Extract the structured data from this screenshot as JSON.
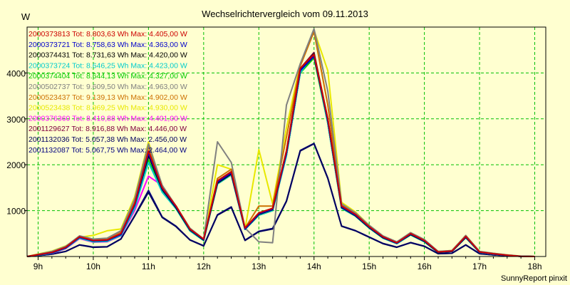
{
  "chart_data": {
    "type": "line",
    "title": "Wechselrichtervergleich vom 09.11.2013",
    "ylabel": "W",
    "footer": "SunnyReport pinxit",
    "ylim": [
      0,
      5000
    ],
    "xlim": [
      8.8,
      18.2
    ],
    "xticks": [
      9,
      10,
      11,
      12,
      13,
      14,
      15,
      16,
      17,
      18
    ],
    "xtick_labels": [
      "9h",
      "10h",
      "11h",
      "12h",
      "13h",
      "14h",
      "15h",
      "16h",
      "17h",
      "18h"
    ],
    "yticks": [
      1000,
      2000,
      3000,
      4000
    ],
    "ytick_labels": [
      "1000",
      "2000",
      "3000",
      "4000"
    ],
    "grid": true,
    "legend_position": "top-left",
    "x": [
      8.75,
      9.0,
      9.25,
      9.5,
      9.75,
      10.0,
      10.25,
      10.5,
      10.75,
      11.0,
      11.25,
      11.5,
      11.75,
      12.0,
      12.25,
      12.5,
      12.75,
      13.0,
      13.25,
      13.5,
      13.75,
      14.0,
      14.25,
      14.5,
      14.75,
      15.0,
      15.25,
      15.5,
      15.75,
      16.0,
      16.25,
      16.5,
      16.75,
      17.0,
      17.25,
      17.5,
      17.75,
      18.0
    ],
    "series": [
      {
        "name": "2000373813 Tot: 8.803,63 Wh Max: 4.405,00 W",
        "color": "#CC0000",
        "values": [
          0,
          40,
          90,
          200,
          430,
          350,
          360,
          500,
          1150,
          2300,
          1500,
          1100,
          600,
          380,
          1650,
          1850,
          620,
          950,
          1050,
          2300,
          4100,
          4405,
          3000,
          1100,
          920,
          650,
          430,
          300,
          500,
          350,
          100,
          120,
          440,
          100,
          60,
          30,
          5,
          0
        ]
      },
      {
        "name": "2000373721 Tot: 8.758,63 Wh Max: 4.363,00 W",
        "color": "#0000CC",
        "values": [
          0,
          35,
          80,
          190,
          420,
          340,
          350,
          480,
          1120,
          2250,
          1480,
          1080,
          590,
          370,
          1620,
          1820,
          600,
          930,
          1030,
          2250,
          4050,
          4363,
          2960,
          1080,
          900,
          640,
          420,
          290,
          490,
          340,
          95,
          115,
          430,
          95,
          55,
          25,
          5,
          0
        ]
      },
      {
        "name": "2000374431 Tot: 8.731,63 Wh Max: 4.420,00 W",
        "color": "#000000",
        "values": [
          0,
          35,
          80,
          190,
          420,
          340,
          350,
          480,
          1120,
          2200,
          1460,
          1060,
          580,
          360,
          1600,
          1800,
          600,
          920,
          1020,
          2250,
          4050,
          4420,
          2950,
          1070,
          890,
          630,
          410,
          290,
          480,
          330,
          90,
          110,
          420,
          95,
          55,
          25,
          5,
          0
        ]
      },
      {
        "name": "2000373724 Tot: 8.646,25 Wh Max: 4.423,00 W",
        "color": "#00CCCC",
        "values": [
          0,
          30,
          75,
          180,
          400,
          320,
          330,
          460,
          1050,
          2050,
          1400,
          1040,
          560,
          350,
          1580,
          1780,
          590,
          900,
          1000,
          2200,
          4000,
          4423,
          2900,
          1050,
          880,
          620,
          400,
          280,
          470,
          320,
          90,
          110,
          410,
          90,
          50,
          25,
          5,
          0
        ]
      },
      {
        "name": "2000374404 Tot: 8.644,13 Wh Max: 4.327,00 W",
        "color": "#00CC00",
        "values": [
          0,
          30,
          75,
          180,
          400,
          320,
          330,
          460,
          1050,
          2100,
          1420,
          1040,
          560,
          350,
          1580,
          1780,
          590,
          900,
          1000,
          2200,
          4000,
          4327,
          2900,
          1050,
          880,
          620,
          400,
          280,
          470,
          320,
          90,
          110,
          410,
          90,
          50,
          25,
          5,
          0
        ]
      },
      {
        "name": "2000502737 Tot: 9.609,50 Wh Max: 4.963,00 W",
        "color": "#808080",
        "values": [
          0,
          50,
          110,
          220,
          450,
          380,
          400,
          560,
          1250,
          2450,
          1550,
          1100,
          620,
          380,
          2500,
          2050,
          620,
          320,
          300,
          3300,
          4200,
          4963,
          3600,
          1150,
          950,
          680,
          450,
          320,
          520,
          370,
          110,
          130,
          460,
          110,
          70,
          35,
          8,
          0
        ]
      },
      {
        "name": "2000523437 Tot: 9.139,13 Wh Max: 4.902,00 W",
        "color": "#CC7000",
        "values": [
          0,
          45,
          100,
          210,
          440,
          370,
          390,
          540,
          1200,
          2400,
          1520,
          1090,
          610,
          370,
          1700,
          1900,
          620,
          1100,
          1100,
          2600,
          4150,
          4902,
          3300,
          1120,
          930,
          660,
          440,
          310,
          510,
          360,
          105,
          125,
          450,
          105,
          65,
          30,
          6,
          0
        ]
      },
      {
        "name": "2000523438 Tot: 8.969,25 Wh Max: 4.930,00 W",
        "color": "#E8E800",
        "values": [
          0,
          55,
          120,
          230,
          420,
          460,
          560,
          600,
          1300,
          2500,
          1500,
          1080,
          600,
          370,
          2000,
          1900,
          600,
          2330,
          1150,
          2800,
          4200,
          4930,
          4050,
          1180,
          970,
          680,
          440,
          310,
          520,
          360,
          110,
          130,
          460,
          110,
          70,
          35,
          8,
          0
        ]
      },
      {
        "name": "2000376360 Tot: 8.410,88 Wh Max: 4.401,00 W",
        "color": "#FF00FF",
        "values": [
          0,
          30,
          70,
          170,
          390,
          310,
          320,
          450,
          1000,
          1750,
          1550,
          1050,
          560,
          350,
          1580,
          1780,
          590,
          900,
          1000,
          2200,
          4000,
          4401,
          2900,
          1050,
          880,
          620,
          400,
          280,
          470,
          320,
          90,
          110,
          410,
          90,
          50,
          25,
          5,
          0
        ]
      },
      {
        "name": "2001129627 Tot: 8.916,88 Wh Max: 4.446,00 W",
        "color": "#800040",
        "values": [
          0,
          40,
          90,
          200,
          430,
          350,
          360,
          500,
          1150,
          2250,
          1500,
          1100,
          600,
          380,
          1650,
          1850,
          620,
          950,
          1050,
          2300,
          4100,
          4446,
          3000,
          1100,
          920,
          650,
          430,
          300,
          500,
          350,
          100,
          120,
          440,
          100,
          60,
          30,
          5,
          0
        ]
      },
      {
        "name": "2001132036 Tot: 5.057,38 Wh Max: 2.456,00 W",
        "color": "#000060",
        "values": [
          0,
          20,
          50,
          110,
          250,
          200,
          210,
          380,
          880,
          1400,
          850,
          650,
          360,
          230,
          900,
          1070,
          350,
          540,
          600,
          1200,
          2300,
          2456,
          1700,
          660,
          560,
          420,
          280,
          200,
          300,
          220,
          60,
          70,
          250,
          60,
          35,
          18,
          3,
          0
        ]
      },
      {
        "name": "2001132087 Tot: 5.067,75 Wh Max: 2.464,00 W",
        "color": "#000080",
        "values": [
          0,
          22,
          52,
          112,
          255,
          205,
          215,
          385,
          890,
          1440,
          860,
          660,
          365,
          235,
          910,
          1080,
          355,
          550,
          610,
          1210,
          2310,
          2464,
          1710,
          665,
          565,
          425,
          285,
          205,
          305,
          225,
          62,
          72,
          255,
          62,
          36,
          18,
          3,
          0
        ]
      }
    ]
  }
}
